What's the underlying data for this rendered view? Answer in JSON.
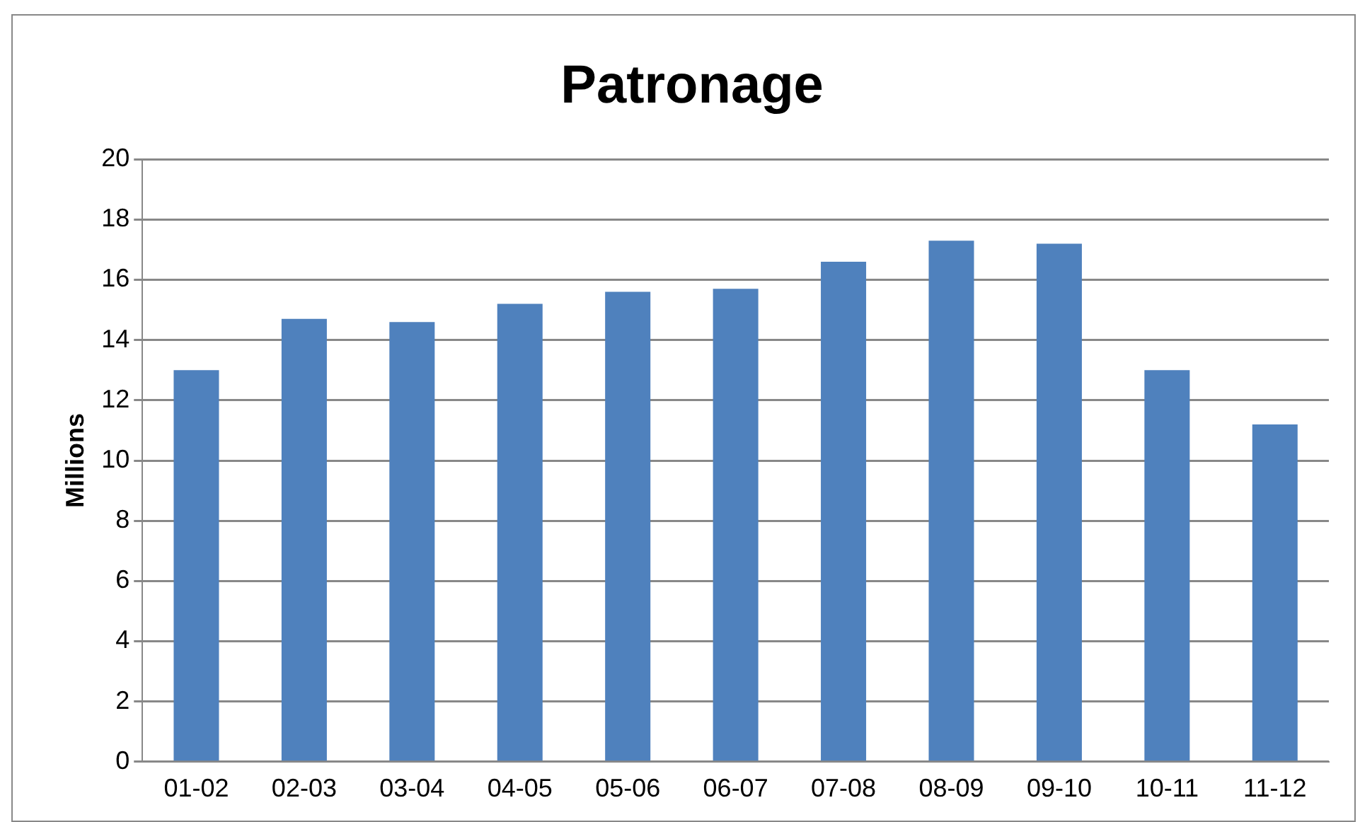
{
  "chart_data": {
    "type": "bar",
    "title": "Patronage",
    "ylabel": "Millions",
    "categories": [
      "01-02",
      "02-03",
      "03-04",
      "04-05",
      "05-06",
      "06-07",
      "07-08",
      "08-09",
      "09-10",
      "10-11",
      "11-12"
    ],
    "values": [
      13.0,
      14.7,
      14.6,
      15.2,
      15.6,
      15.7,
      16.6,
      17.3,
      17.2,
      13.0,
      11.2
    ],
    "color": "#4f81bd",
    "ylim": [
      0,
      20
    ],
    "yticks": [
      0,
      2,
      4,
      6,
      8,
      10,
      12,
      14,
      16,
      18,
      20
    ],
    "grid": "y",
    "legend": false
  }
}
